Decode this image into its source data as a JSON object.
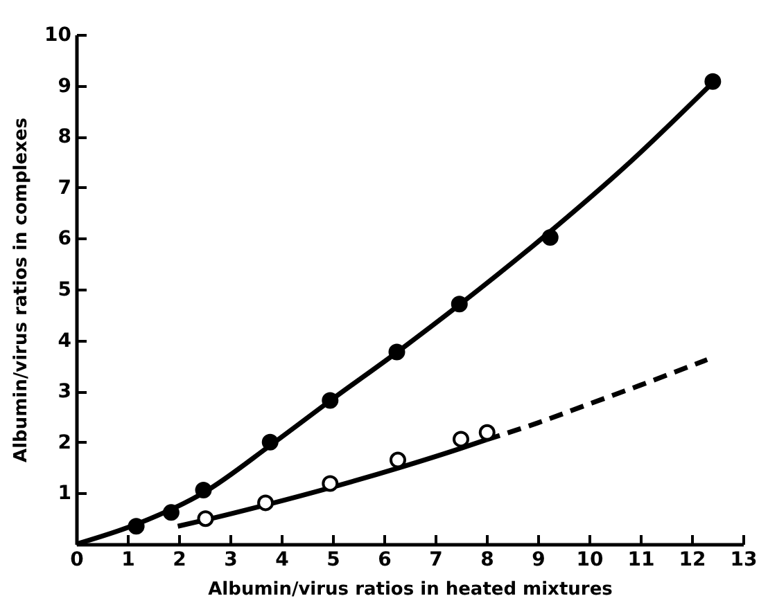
{
  "chart_data": {
    "type": "scatter",
    "xlabel": "Albumin/virus ratios in heated mixtures",
    "ylabel": "Albumin/virus ratios in complexes",
    "xlim": [
      0,
      13
    ],
    "ylim": [
      0,
      10
    ],
    "xticks": [
      0,
      1,
      2,
      3,
      4,
      5,
      6,
      7,
      8,
      9,
      10,
      11,
      12,
      13
    ],
    "yticks": [
      {
        "value": 0,
        "label": null
      },
      1,
      2,
      3,
      4,
      5,
      6,
      7,
      8,
      9,
      10
    ],
    "grid": false,
    "series": [
      {
        "type": "line",
        "color": "#000000",
        "line_style": "solid",
        "marker": "none",
        "x": [
          0,
          1.2,
          2.5,
          3.8,
          5,
          6.3,
          7.5,
          9.2,
          10.8,
          12.4
        ],
        "values": [
          0,
          0.4,
          1.02,
          1.95,
          2.85,
          3.8,
          4.72,
          6.1,
          7.5,
          9.05
        ]
      },
      {
        "type": "line",
        "color": "#000000",
        "line_style": "solid",
        "marker": "none",
        "x": [
          1.98,
          2.5,
          3.7,
          5,
          6.3,
          7.5,
          8
        ],
        "values": [
          0.35,
          0.47,
          0.77,
          1.12,
          1.5,
          1.88,
          2.05
        ]
      },
      {
        "type": "line",
        "color": "#000000",
        "line_style": "dashed",
        "marker": "none",
        "x": [
          8,
          9,
          10,
          11,
          12.3
        ],
        "values": [
          2.05,
          2.38,
          2.75,
          3.12,
          3.62
        ]
      },
      {
        "type": "scatter",
        "color": "#000000",
        "marker": "circle",
        "x": [
          1.17,
          1.85,
          2.48,
          3.78,
          4.95,
          6.25,
          7.47,
          9.24,
          12.41
        ],
        "values": [
          0.35,
          0.62,
          1.06,
          2.0,
          2.82,
          3.77,
          4.71,
          6.02,
          9.08
        ]
      },
      {
        "type": "scatter",
        "color": "#ffffff",
        "marker": "circle",
        "x": [
          2.52,
          3.69,
          4.95,
          6.27,
          7.5,
          8.01
        ],
        "values": [
          0.5,
          0.81,
          1.19,
          1.65,
          2.06,
          2.19
        ]
      }
    ]
  }
}
